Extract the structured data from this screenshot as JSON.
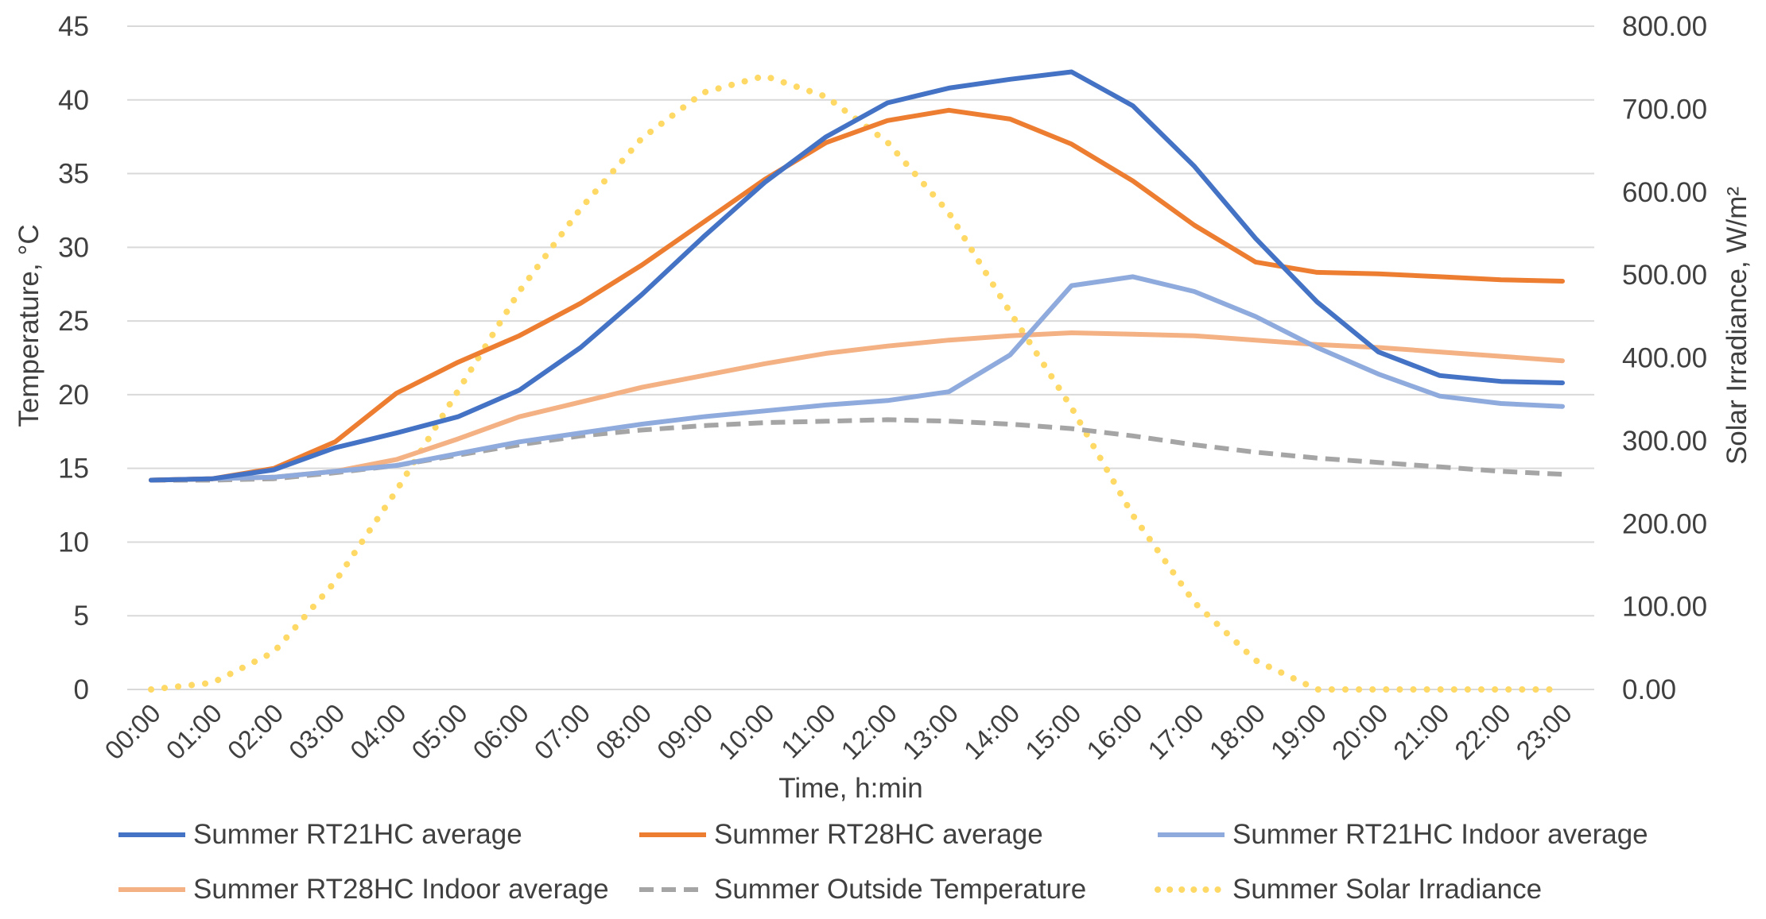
{
  "chart_data": {
    "type": "line",
    "x": [
      "00:00",
      "01:00",
      "02:00",
      "03:00",
      "04:00",
      "05:00",
      "06:00",
      "07:00",
      "08:00",
      "09:00",
      "10:00",
      "11:00",
      "12:00",
      "13:00",
      "14:00",
      "15:00",
      "16:00",
      "17:00",
      "18:00",
      "19:00",
      "20:00",
      "21:00",
      "22:00",
      "23:00"
    ],
    "xlabel": "Time, h:min",
    "ylabel": "Temperature, °C",
    "y2label": "Solar Irradiance, W/m²",
    "ylim": [
      0,
      45
    ],
    "y2lim": [
      0,
      800
    ],
    "yticks": [
      "0",
      "5",
      "10",
      "15",
      "20",
      "25",
      "30",
      "35",
      "40",
      "45"
    ],
    "y2ticks": [
      "0.00",
      "100.00",
      "200.00",
      "300.00",
      "400.00",
      "500.00",
      "600.00",
      "700.00",
      "800.00"
    ],
    "grid": true,
    "legend_position": "bottom",
    "series": [
      {
        "name": "Summer RT21HC average",
        "axis": "left",
        "color": "#4472C4",
        "style": "solid",
        "values": [
          14.2,
          14.3,
          14.9,
          16.4,
          17.4,
          18.5,
          20.3,
          23.2,
          26.8,
          30.7,
          34.4,
          37.5,
          39.8,
          40.8,
          41.4,
          41.9,
          39.6,
          35.5,
          30.6,
          26.3,
          22.9,
          21.3,
          20.9,
          20.8
        ]
      },
      {
        "name": "Summer RT28HC average",
        "axis": "left",
        "color": "#ED7D31",
        "style": "solid",
        "values": [
          14.2,
          14.3,
          15.0,
          16.8,
          20.1,
          22.2,
          24.0,
          26.2,
          28.8,
          31.7,
          34.6,
          37.1,
          38.6,
          39.3,
          38.7,
          37.0,
          34.5,
          31.5,
          29.0,
          28.3,
          28.2,
          28.0,
          27.8,
          27.7
        ]
      },
      {
        "name": "Summer RT21HC Indoor average",
        "axis": "left",
        "color": "#8FAADC",
        "style": "solid",
        "values": [
          14.2,
          14.3,
          14.4,
          14.8,
          15.2,
          16.0,
          16.8,
          17.4,
          18.0,
          18.5,
          18.9,
          19.3,
          19.6,
          20.2,
          22.7,
          27.4,
          28.0,
          27.0,
          25.3,
          23.2,
          21.4,
          19.9,
          19.4,
          19.2
        ]
      },
      {
        "name": "Summer RT28HC Indoor average",
        "axis": "left",
        "color": "#F4B183",
        "style": "solid",
        "values": [
          14.2,
          14.3,
          14.4,
          14.8,
          15.6,
          17.0,
          18.5,
          19.5,
          20.5,
          21.3,
          22.1,
          22.8,
          23.3,
          23.7,
          24.0,
          24.2,
          24.1,
          24.0,
          23.7,
          23.4,
          23.2,
          22.9,
          22.6,
          22.3
        ]
      },
      {
        "name": "Summer Outside Temperature",
        "axis": "left",
        "color": "#A5A5A5",
        "style": "dashed",
        "values": [
          14.2,
          14.2,
          14.3,
          14.7,
          15.2,
          15.9,
          16.6,
          17.2,
          17.6,
          17.9,
          18.1,
          18.2,
          18.3,
          18.2,
          18.0,
          17.7,
          17.2,
          16.6,
          16.1,
          15.7,
          15.4,
          15.1,
          14.8,
          14.6
        ]
      },
      {
        "name": "Summer Solar Irradiance",
        "axis": "right",
        "color": "#FFD966",
        "style": "dotted",
        "values": [
          0,
          8,
          45,
          130,
          240,
          360,
          480,
          580,
          665,
          720,
          740,
          715,
          660,
          575,
          455,
          340,
          210,
          105,
          35,
          0,
          0,
          0,
          0,
          0
        ]
      }
    ]
  }
}
